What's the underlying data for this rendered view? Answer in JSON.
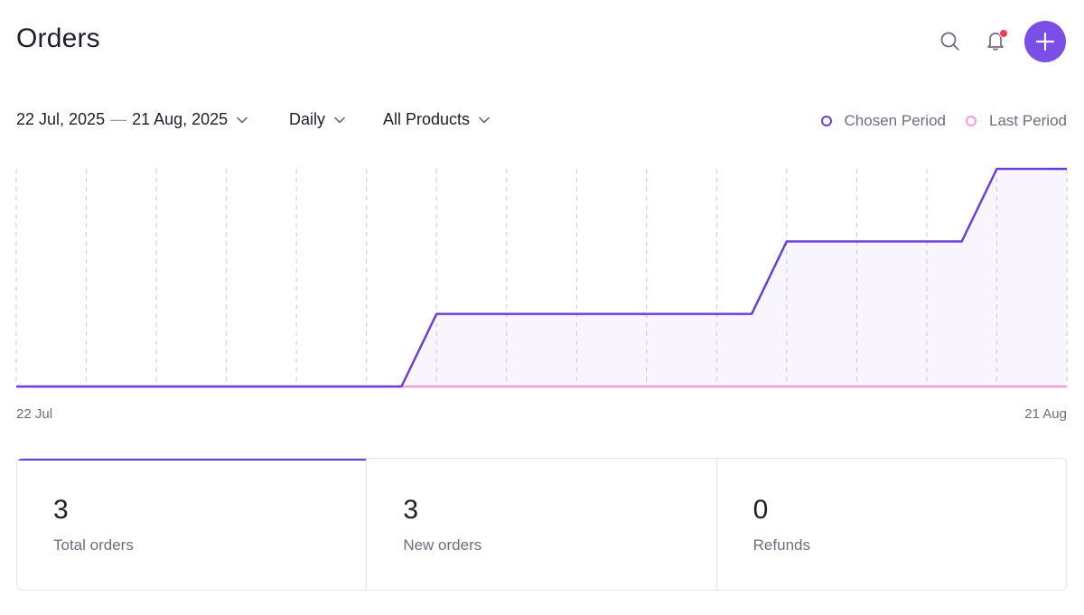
{
  "header": {
    "title": "Orders",
    "icons": [
      "search-icon",
      "bell-icon",
      "plus-icon"
    ],
    "accent_color": "#7b4fe6",
    "notification_dot_color": "#f23a5a"
  },
  "filters": {
    "date_start": "22 Jul, 2025",
    "date_separator": "—",
    "date_end": "21 Aug, 2025",
    "interval": "Daily",
    "products": "All Products"
  },
  "legend": {
    "chosen": "Chosen Period",
    "last": "Last Period",
    "chosen_color": "#6a3fd8",
    "last_color": "#f59ad8"
  },
  "chart_data": {
    "type": "line",
    "x_start_label": "22 Jul",
    "x_end_label": "21 Aug",
    "grid": "vertical-dashed",
    "legend_placement": "top-right",
    "ylim": [
      0,
      3
    ],
    "series": [
      {
        "name": "Chosen Period",
        "color": "#6a3fd8",
        "fill": true,
        "x": [
          0,
          5.5,
          6,
          10.5,
          11,
          13.5,
          14,
          15
        ],
        "y": [
          0,
          0,
          1,
          1,
          2,
          2,
          3,
          3
        ]
      },
      {
        "name": "Last Period",
        "color": "#f59ad8",
        "fill": false,
        "x": [
          0,
          15
        ],
        "y": [
          0,
          0
        ]
      }
    ]
  },
  "stats": [
    {
      "value": "3",
      "label": "Total orders",
      "active": true
    },
    {
      "value": "3",
      "label": "New orders",
      "active": false
    },
    {
      "value": "0",
      "label": "Refunds",
      "active": false
    }
  ]
}
